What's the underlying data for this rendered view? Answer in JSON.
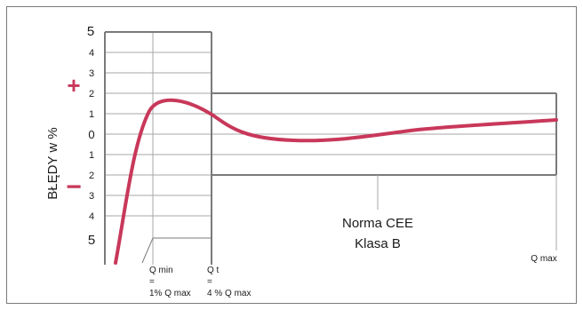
{
  "ylabel": "BŁĘDY w %",
  "plus_sign": "+",
  "minus_sign": "−",
  "ticks_upper": [
    "5",
    "4",
    "3",
    "2",
    "1"
  ],
  "tick_zero": "0",
  "ticks_lower": [
    "1",
    "2",
    "3",
    "4",
    "5"
  ],
  "norm_line1": "Norma CEE",
  "norm_line2": "Klasa B",
  "qmin": {
    "name": "Q min",
    "eq": "=",
    "value": "1% Q max"
  },
  "qt": {
    "name": "Q t",
    "eq": "=",
    "value": "4 % Q max"
  },
  "qmax": "Q max",
  "colors": {
    "curve": "#c8385a",
    "signs": "#c8385a",
    "grid": "#a7a7a7",
    "frame": "#7a7a7a",
    "text": "#1a1a1a"
  }
}
